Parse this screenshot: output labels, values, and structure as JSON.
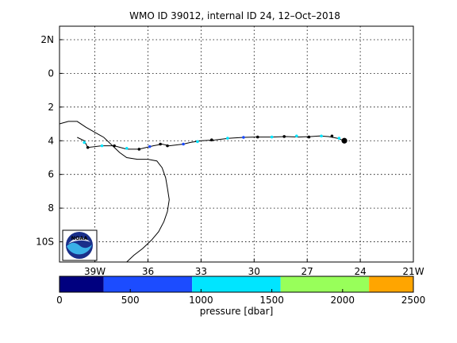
{
  "title": "WMO ID 39012, internal ID 24, 12–Oct–2018",
  "map": {
    "lon_ticks": [
      "39W",
      "36",
      "33",
      "30",
      "27",
      "24",
      "21W"
    ],
    "lat_ticks": [
      "2N",
      "0",
      "2",
      "4",
      "6",
      "8",
      "10S"
    ],
    "lon_range": [
      -41,
      -21
    ],
    "lat_range": [
      -11.2,
      2.8
    ],
    "grid": true,
    "track_color": "#000000",
    "coast_color": "#000000",
    "track_lonlat": [
      [
        -40.0,
        -3.8
      ],
      [
        -39.6,
        -4.0
      ],
      [
        -39.4,
        -4.4
      ],
      [
        -38.6,
        -4.3
      ],
      [
        -37.9,
        -4.3
      ],
      [
        -37.2,
        -4.5
      ],
      [
        -36.5,
        -4.5
      ],
      [
        -35.7,
        -4.3
      ],
      [
        -35.2,
        -4.2
      ],
      [
        -34.8,
        -4.3
      ],
      [
        -34.0,
        -4.2
      ],
      [
        -33.6,
        -4.1
      ],
      [
        -33.0,
        -4.0
      ],
      [
        -32.2,
        -3.95
      ],
      [
        -31.4,
        -3.85
      ],
      [
        -30.6,
        -3.8
      ],
      [
        -29.9,
        -3.78
      ],
      [
        -29.0,
        -3.78
      ],
      [
        -28.2,
        -3.75
      ],
      [
        -27.5,
        -3.78
      ],
      [
        -26.8,
        -3.75
      ],
      [
        -26.3,
        -3.72
      ],
      [
        -25.8,
        -3.75
      ],
      [
        -25.3,
        -3.85
      ],
      [
        -24.9,
        -4.0
      ]
    ],
    "profile_points": [
      {
        "lon": -39.6,
        "lat": -4.1,
        "color": "#00e5ff"
      },
      {
        "lon": -39.4,
        "lat": -4.4,
        "color": "#000000"
      },
      {
        "lon": -38.6,
        "lat": -4.3,
        "color": "#00e5ff"
      },
      {
        "lon": -37.9,
        "lat": -4.3,
        "color": "#000000"
      },
      {
        "lon": -37.2,
        "lat": -4.45,
        "color": "#00e5ff"
      },
      {
        "lon": -36.5,
        "lat": -4.5,
        "color": "#000000"
      },
      {
        "lon": -35.9,
        "lat": -4.35,
        "color": "#1c4cff"
      },
      {
        "lon": -35.3,
        "lat": -4.2,
        "color": "#000000"
      },
      {
        "lon": -34.9,
        "lat": -4.3,
        "color": "#000000"
      },
      {
        "lon": -34.0,
        "lat": -4.2,
        "color": "#1c4cff"
      },
      {
        "lon": -33.2,
        "lat": -4.05,
        "color": "#00e5ff"
      },
      {
        "lon": -32.4,
        "lat": -3.95,
        "color": "#000000"
      },
      {
        "lon": -31.5,
        "lat": -3.85,
        "color": "#00e5ff"
      },
      {
        "lon": -30.6,
        "lat": -3.8,
        "color": "#1c4cff"
      },
      {
        "lon": -29.8,
        "lat": -3.78,
        "color": "#000000"
      },
      {
        "lon": -29.0,
        "lat": -3.78,
        "color": "#00e5ff"
      },
      {
        "lon": -28.3,
        "lat": -3.75,
        "color": "#000000"
      },
      {
        "lon": -27.6,
        "lat": -3.72,
        "color": "#00e5ff"
      },
      {
        "lon": -26.9,
        "lat": -3.78,
        "color": "#000000"
      },
      {
        "lon": -26.2,
        "lat": -3.72,
        "color": "#00e5ff"
      },
      {
        "lon": -25.6,
        "lat": -3.72,
        "color": "#000000"
      },
      {
        "lon": -25.2,
        "lat": -3.85,
        "color": "#00e5ff"
      }
    ],
    "latest_position": {
      "lon": -24.9,
      "lat": -4.0,
      "color": "#000000"
    },
    "coastline_lonlat": [
      [
        -41.0,
        -3.0
      ],
      [
        -40.5,
        -2.85
      ],
      [
        -40.0,
        -2.85
      ],
      [
        -39.5,
        -3.2
      ],
      [
        -39.0,
        -3.5
      ],
      [
        -38.5,
        -3.8
      ],
      [
        -38.0,
        -4.3
      ],
      [
        -37.6,
        -4.7
      ],
      [
        -37.2,
        -5.0
      ],
      [
        -36.6,
        -5.1
      ],
      [
        -36.0,
        -5.1
      ],
      [
        -35.5,
        -5.2
      ],
      [
        -35.2,
        -5.6
      ],
      [
        -35.0,
        -6.2
      ],
      [
        -34.9,
        -6.8
      ],
      [
        -34.8,
        -7.5
      ],
      [
        -34.9,
        -8.2
      ],
      [
        -35.1,
        -8.8
      ],
      [
        -35.4,
        -9.4
      ],
      [
        -35.8,
        -9.9
      ],
      [
        -36.3,
        -10.4
      ],
      [
        -36.8,
        -10.8
      ],
      [
        -37.2,
        -11.2
      ]
    ]
  },
  "logo": {
    "text": "NOAA",
    "primary_color": "#1a2f8a",
    "secondary_color": "#3ab0e8"
  },
  "colorbar": {
    "label": "pressure [dbar]",
    "ticks": [
      "0",
      "500",
      "1000",
      "1500",
      "2000",
      "2500"
    ],
    "range": [
      0,
      2500
    ],
    "segments": [
      {
        "from": 0,
        "to": 312,
        "color": "#00007f"
      },
      {
        "from": 312,
        "to": 937,
        "color": "#1c4cff"
      },
      {
        "from": 937,
        "to": 1562,
        "color": "#00e5ff"
      },
      {
        "from": 1562,
        "to": 2187,
        "color": "#98ff5a"
      },
      {
        "from": 2187,
        "to": 2500,
        "color": "#ffa500"
      }
    ]
  }
}
